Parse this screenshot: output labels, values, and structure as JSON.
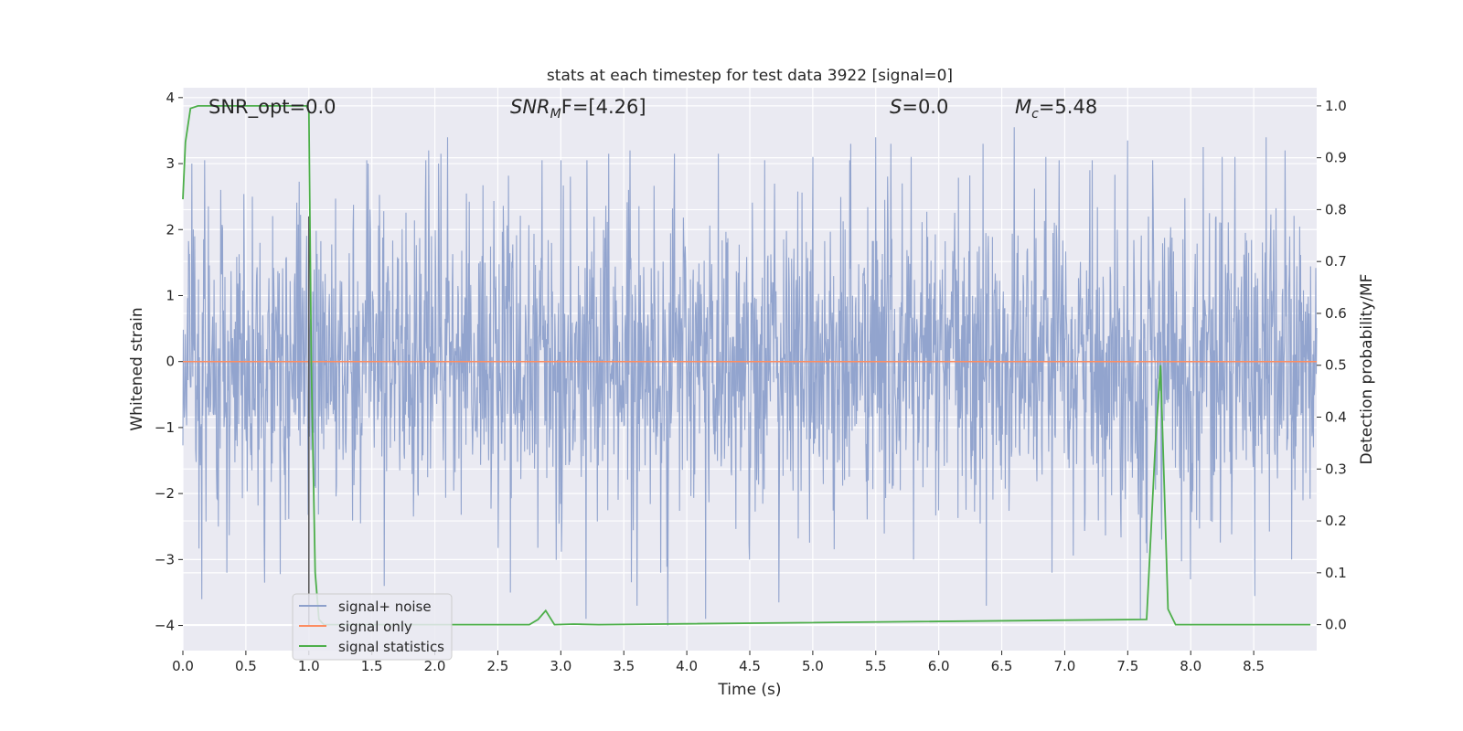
{
  "chart_data": {
    "type": "line",
    "title": "stats at each timestep for test data 3922 [signal=0]",
    "xlabel": "Time (s)",
    "ylabel_left": "Whitened strain",
    "ylabel_right": "Detection probability/MF",
    "xlim": [
      0.0,
      9.0
    ],
    "ylim_left": [
      -4.38,
      4.15
    ],
    "ylim_right": [
      -0.05,
      1.035
    ],
    "xticks": [
      0.0,
      0.5,
      1.0,
      1.5,
      2.0,
      2.5,
      3.0,
      3.5,
      4.0,
      4.5,
      5.0,
      5.5,
      6.0,
      6.5,
      7.0,
      7.5,
      8.0,
      8.5
    ],
    "xtick_labels": [
      "0.0",
      "0.5",
      "1.0",
      "1.5",
      "2.0",
      "2.5",
      "3.0",
      "3.5",
      "4.0",
      "4.5",
      "5.0",
      "5.5",
      "6.0",
      "6.5",
      "7.0",
      "7.5",
      "8.0",
      "8.5"
    ],
    "yticks_left": [
      -4,
      -3,
      -2,
      -1,
      0,
      1,
      2,
      3,
      4
    ],
    "ytick_labels_left": [
      "−4",
      "−3",
      "−2",
      "−1",
      "0",
      "1",
      "2",
      "3",
      "4"
    ],
    "yticks_right": [
      0.0,
      0.1,
      0.2,
      0.3,
      0.4,
      0.5,
      0.6,
      0.7,
      0.8,
      0.9,
      1.0
    ],
    "ytick_labels_right": [
      "0.0",
      "0.1",
      "0.2",
      "0.3",
      "0.4",
      "0.5",
      "0.6",
      "0.7",
      "0.8",
      "0.9",
      "1.0"
    ],
    "grid": true,
    "legend_position": "lower-left",
    "annotations": [
      "SNR_opt=0.0",
      "SNR",
      "M",
      "F=[4.26]",
      "S",
      "=0.0",
      "M",
      "c",
      "=5.48"
    ],
    "series": [
      {
        "name": "signal+ noise",
        "axis": "left",
        "color": "#8da0cb",
        "description_kind": "noise",
        "envelope": {
          "typical_amplitude": 1.45,
          "peak_max": 3.55,
          "trough_min": -4.0
        },
        "peaks": [
          [
            0.07,
            3.0
          ],
          [
            0.15,
            3.1
          ],
          [
            0.3,
            2.6
          ],
          [
            0.55,
            2.5
          ],
          [
            1.0,
            2.2
          ],
          [
            1.47,
            3.0
          ],
          [
            1.95,
            3.2
          ],
          [
            2.03,
            3.0
          ],
          [
            2.05,
            3.15
          ],
          [
            2.1,
            3.4
          ],
          [
            2.6,
            2.7
          ],
          [
            2.85,
            3.05
          ],
          [
            3.0,
            3.05
          ],
          [
            3.2,
            2.9
          ],
          [
            3.38,
            3.15
          ],
          [
            3.55,
            3.2
          ],
          [
            3.9,
            3.15
          ],
          [
            4.25,
            3.15
          ],
          [
            4.5,
            3.3
          ],
          [
            4.62,
            3.05
          ],
          [
            5.0,
            3.1
          ],
          [
            5.3,
            3.3
          ],
          [
            5.5,
            3.4
          ],
          [
            5.62,
            3.3
          ],
          [
            5.78,
            3.1
          ],
          [
            6.35,
            3.3
          ],
          [
            6.6,
            3.55
          ],
          [
            6.85,
            3.1
          ],
          [
            7.2,
            2.9
          ],
          [
            7.5,
            3.35
          ],
          [
            7.7,
            3.05
          ],
          [
            8.1,
            3.25
          ],
          [
            8.25,
            3.1
          ],
          [
            8.35,
            3.1
          ],
          [
            8.6,
            3.4
          ],
          [
            8.75,
            3.2
          ]
        ],
        "troughs": [
          [
            0.15,
            -3.6
          ],
          [
            0.35,
            -3.2
          ],
          [
            0.65,
            -3.35
          ],
          [
            1.6,
            -3.4
          ],
          [
            2.6,
            -3.5
          ],
          [
            3.2,
            -3.9
          ],
          [
            3.85,
            -4.0
          ],
          [
            4.15,
            -3.9
          ],
          [
            4.5,
            -3.0
          ],
          [
            5.8,
            -3.0
          ],
          [
            6.9,
            -3.2
          ],
          [
            7.6,
            -3.9
          ],
          [
            8.0,
            -3.3
          ],
          [
            8.8,
            -3.0
          ]
        ]
      },
      {
        "name": "signal only",
        "axis": "left",
        "color": "#fc8d62",
        "x": [
          0.0,
          9.0
        ],
        "y": [
          0.0,
          0.0
        ]
      },
      {
        "name": "signal statistics",
        "axis": "right",
        "color": "#4daf4a",
        "x": [
          0.0,
          0.02,
          0.06,
          0.12,
          0.2,
          0.5,
          0.8,
          0.98,
          1.0,
          1.02,
          1.05,
          1.08,
          1.12,
          2.75,
          2.82,
          2.88,
          2.95,
          3.1,
          3.3,
          7.65,
          7.72,
          7.76,
          7.82,
          7.88,
          8.95
        ],
        "y": [
          0.82,
          0.93,
          0.995,
          1.0,
          1.0,
          1.0,
          1.0,
          1.0,
          0.99,
          0.5,
          0.1,
          0.01,
          0.0,
          0.0,
          0.01,
          0.027,
          0.0,
          0.001,
          0.0,
          0.01,
          0.35,
          0.5,
          0.03,
          0.0,
          0.0
        ]
      },
      {
        "name": "",
        "axis": "left",
        "color": "#555555",
        "kind": "vertical-line",
        "x": [
          1.0,
          1.0
        ],
        "y": [
          -4.0,
          2.2
        ]
      }
    ]
  }
}
